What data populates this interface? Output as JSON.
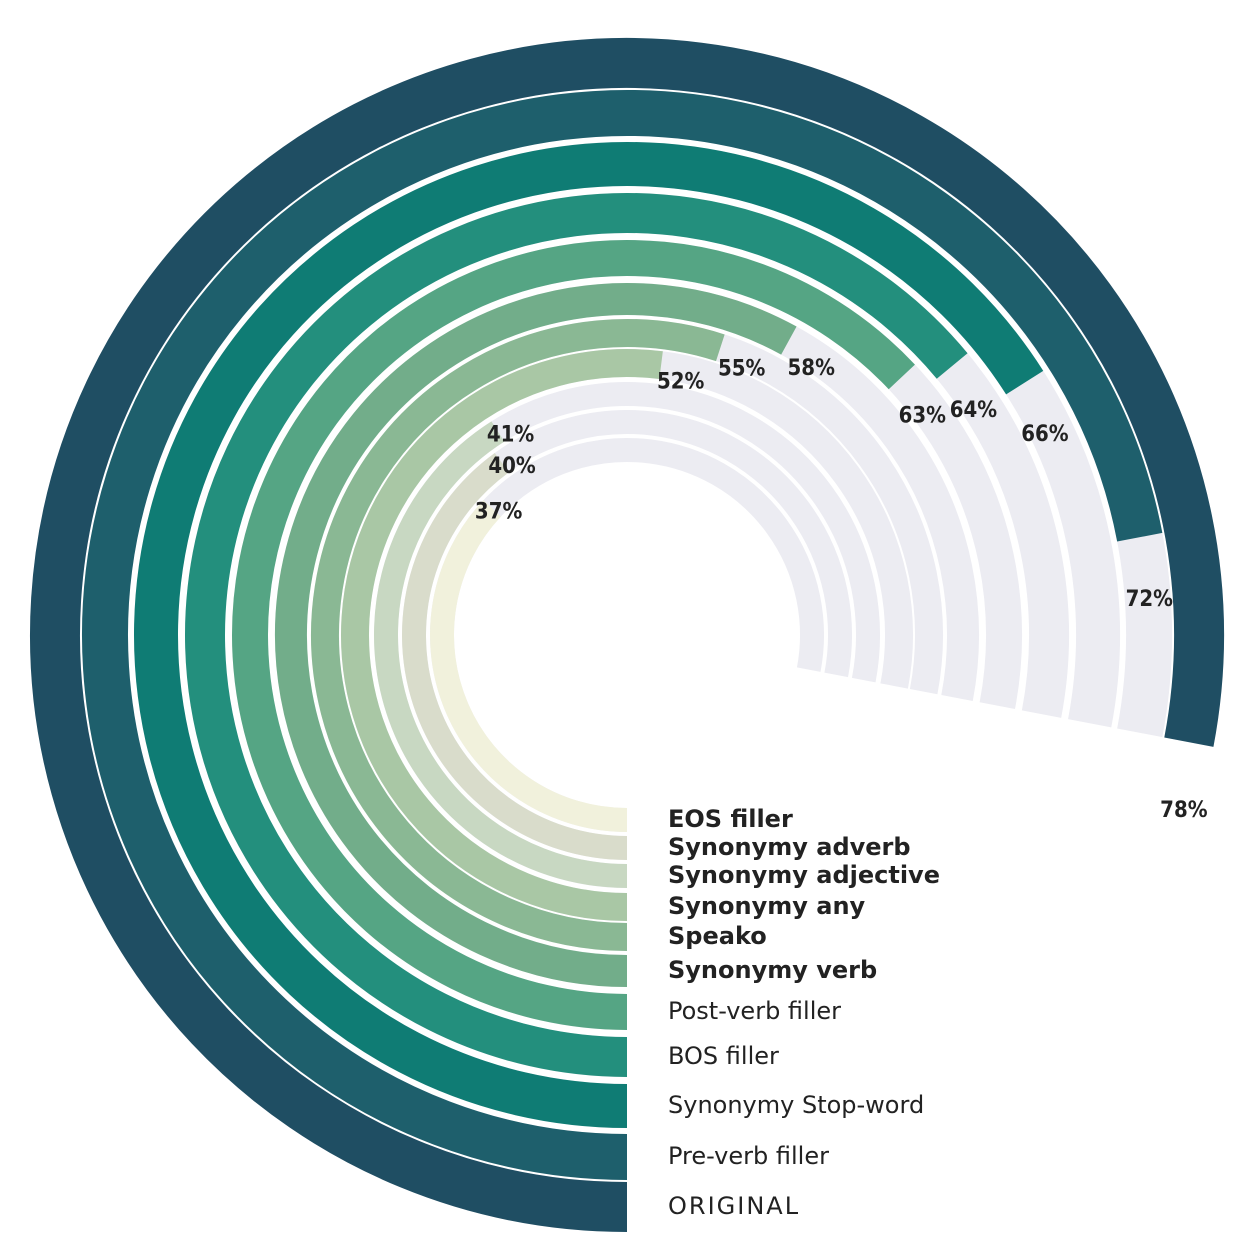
{
  "chart_data": {
    "type": "radial-bar",
    "categories": [
      "EOS filler",
      "Synonymy adverb",
      "Synonymy adjective",
      "Synonymy any",
      "Speako",
      "Synonymy verb",
      "Post-verb filler",
      "BOS filler",
      "Synonymy Stop-word",
      "Pre-verb filler",
      "ORIGINAL"
    ],
    "values": [
      37,
      40,
      41,
      52,
      55,
      58,
      63,
      64,
      66,
      72,
      78
    ],
    "value_labels": [
      "37%",
      "40%",
      "41%",
      "52%",
      "55%",
      "58%",
      "63%",
      "64%",
      "66%",
      "72%",
      "78%"
    ],
    "colors": [
      "#f1f1dc",
      "#d9dccb",
      "#c8d8c2",
      "#a9c7a5",
      "#8ab894",
      "#72ad8a",
      "#55a584",
      "#238f7d",
      "#0f7c74",
      "#1e5f6c",
      "#1f4e63"
    ],
    "track_color": "#ececf2",
    "ylim": [
      0,
      100
    ]
  }
}
